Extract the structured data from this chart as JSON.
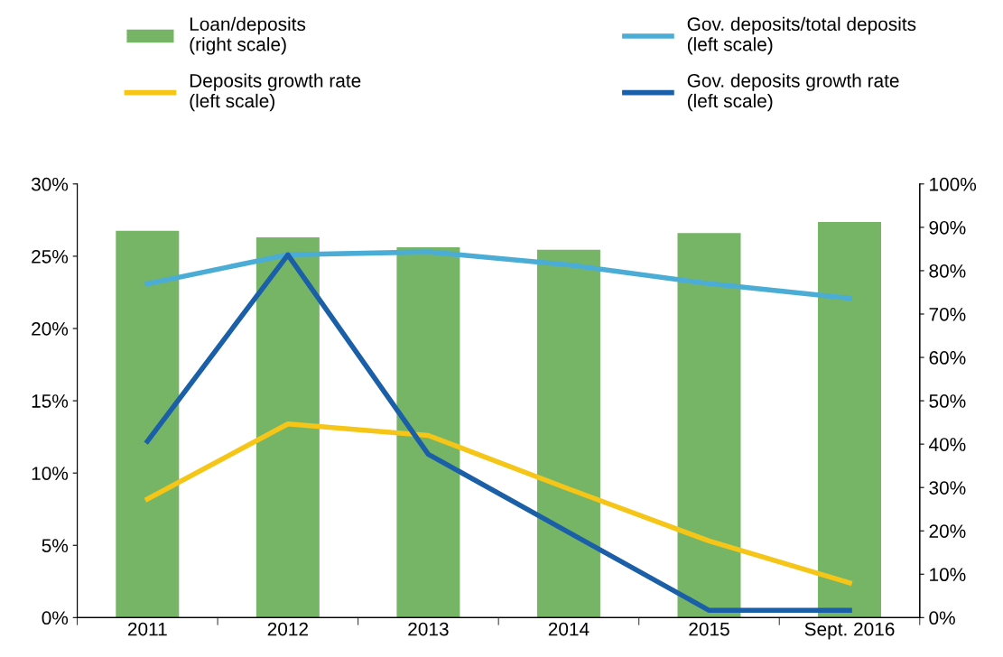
{
  "chart_data": {
    "type": "line",
    "categories": [
      "2011",
      "2012",
      "2013",
      "2014",
      "2015",
      "Sept. 2016"
    ],
    "series": [
      {
        "name": "Loan/deposits\n(right scale)",
        "type": "bar",
        "axis": "y2",
        "color": "#77b566",
        "values": [
          89.2,
          87.7,
          85.4,
          84.8,
          88.7,
          91.2
        ]
      },
      {
        "name": "Gov. deposits/total deposits\n(left scale)",
        "color": "#4bacd6",
        "values": [
          23.1,
          25.1,
          25.3,
          24.4,
          23.1,
          22.1
        ]
      },
      {
        "name": "Deposits growth rate\n(left scale)",
        "color": "#f5c518",
        "values": [
          8.2,
          13.4,
          12.6,
          8.9,
          5.3,
          2.4
        ]
      },
      {
        "name": "Gov. deposits growth rate\n(left scale)",
        "color": "#1a5fa8",
        "values": [
          12.2,
          25.1,
          11.3,
          5.9,
          0.5,
          0.5
        ]
      }
    ],
    "ylim": [
      0,
      30
    ],
    "yticks": [
      {
        "value": 0,
        "label": "0%"
      },
      {
        "value": 5,
        "label": "5%"
      },
      {
        "value": 10,
        "label": "10%"
      },
      {
        "value": 15,
        "label": "15%"
      },
      {
        "value": 20,
        "label": "20%"
      },
      {
        "value": 25,
        "label": "25%"
      },
      {
        "value": 30,
        "label": "30%"
      }
    ],
    "y2lim": [
      0,
      100
    ],
    "y2ticks": [
      {
        "value": 0,
        "label": "0%"
      },
      {
        "value": 10,
        "label": "10%"
      },
      {
        "value": 20,
        "label": "20%"
      },
      {
        "value": 30,
        "label": "30%"
      },
      {
        "value": 40,
        "label": "40%"
      },
      {
        "value": 50,
        "label": "50%"
      },
      {
        "value": 60,
        "label": "60%"
      },
      {
        "value": 70,
        "label": "70%"
      },
      {
        "value": 80,
        "label": "80%"
      },
      {
        "value": 90,
        "label": "90%"
      },
      {
        "value": 100,
        "label": "100%"
      }
    ],
    "grid": false,
    "legend": "top",
    "marker": "none",
    "line_style": "solid"
  }
}
